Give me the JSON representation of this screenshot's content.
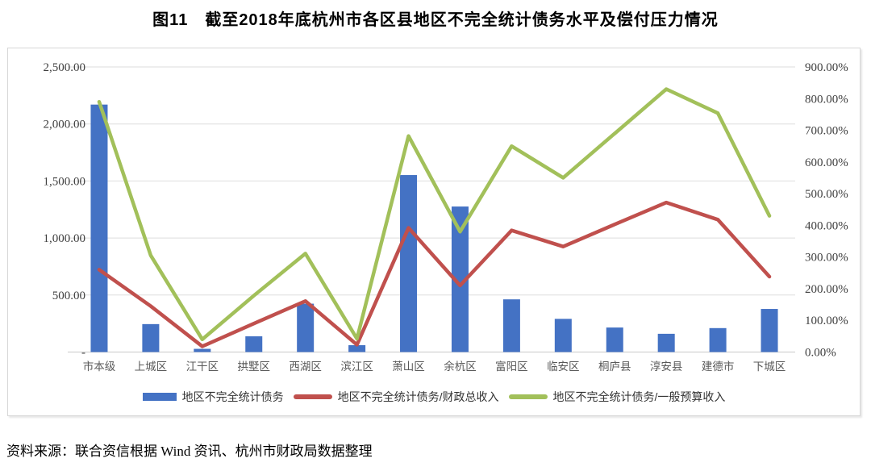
{
  "title": "图11　截至2018年底杭州市各区县地区不完全统计债务水平及偿付压力情况",
  "source_note": "资料来源：联合资信根据 Wind 资讯、杭州市财政局数据整理",
  "colors": {
    "bar_blue": "#4472C4",
    "line_red": "#C0504D",
    "line_green": "#A2C05A",
    "grid": "#DEDEDE",
    "axis_bottom": "#C9C9C9",
    "axis_text": "#3F3F3F",
    "category_text": "#595959"
  },
  "chart_data": {
    "type": "bar",
    "subtype": "combo bar + two lines (secondary % axis)",
    "categories": [
      "市本级",
      "上城区",
      "江干区",
      "拱墅区",
      "西湖区",
      "滨江区",
      "萧山区",
      "余杭区",
      "富阳区",
      "临安区",
      "桐庐县",
      "淳安县",
      "建德市",
      "下城区"
    ],
    "series": [
      {
        "name": "地区不完全统计债务",
        "type": "bar",
        "axis": "left",
        "values": [
          2170,
          245,
          28,
          138,
          424,
          60,
          1552,
          1276,
          462,
          291,
          215,
          160,
          210,
          378
        ]
      },
      {
        "name": "地区不完全统计债务/财政总收入",
        "type": "line",
        "axis": "right",
        "values_pct": [
          260,
          145,
          18,
          90,
          161,
          23,
          392,
          210,
          384,
          333,
          403,
          472,
          418,
          238
        ]
      },
      {
        "name": "地区不完全统计债务/一般预算收入",
        "type": "line",
        "axis": "right",
        "values_pct": [
          790,
          305,
          40,
          178,
          311,
          42,
          682,
          380,
          650,
          550,
          690,
          830,
          754,
          430
        ]
      }
    ],
    "left_axis": {
      "min": 0,
      "max": 2500,
      "tick_labels": [
        "2,500.00",
        "2,000.00",
        "1,500.00",
        "1,000.00",
        "500.00",
        "-"
      ]
    },
    "right_axis": {
      "min": 0,
      "max": 900,
      "tick_labels": [
        "900.00%",
        "800.00%",
        "700.00%",
        "600.00%",
        "500.00%",
        "400.00%",
        "300.00%",
        "200.00%",
        "100.00%",
        "0.00%"
      ]
    },
    "grid": "horizontal only",
    "legend_position": "bottom-center-inside-frame"
  }
}
